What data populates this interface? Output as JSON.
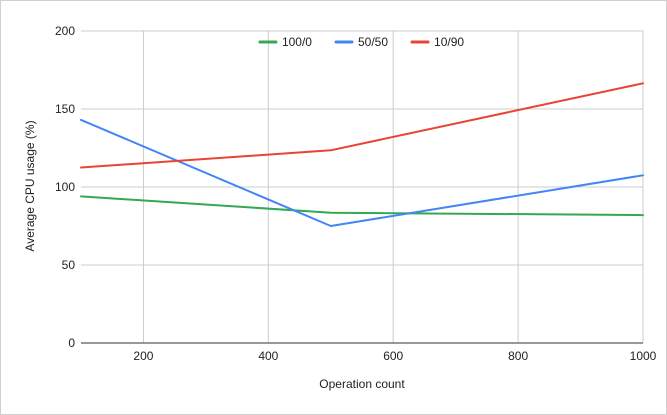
{
  "chart_data": {
    "type": "line",
    "title": "",
    "xlabel": "Operation count",
    "ylabel": "Average CPU usage (%)",
    "xlim": [
      100,
      1000
    ],
    "ylim": [
      0,
      200
    ],
    "x_ticks": [
      200,
      400,
      600,
      800,
      1000
    ],
    "y_ticks": [
      0,
      50,
      100,
      150,
      200
    ],
    "grid": true,
    "legend_position": "top",
    "series": [
      {
        "name": "100/0",
        "color": "#34a853",
        "x": [
          100,
          500,
          1000
        ],
        "y": [
          94,
          83.5,
          82
        ]
      },
      {
        "name": "50/50",
        "color": "#4285f4",
        "x": [
          100,
          500,
          1000
        ],
        "y": [
          143,
          75,
          107.5
        ]
      },
      {
        "name": "10/90",
        "color": "#ea4335",
        "x": [
          100,
          500,
          1000
        ],
        "y": [
          112.5,
          123.5,
          166.5
        ]
      }
    ]
  }
}
